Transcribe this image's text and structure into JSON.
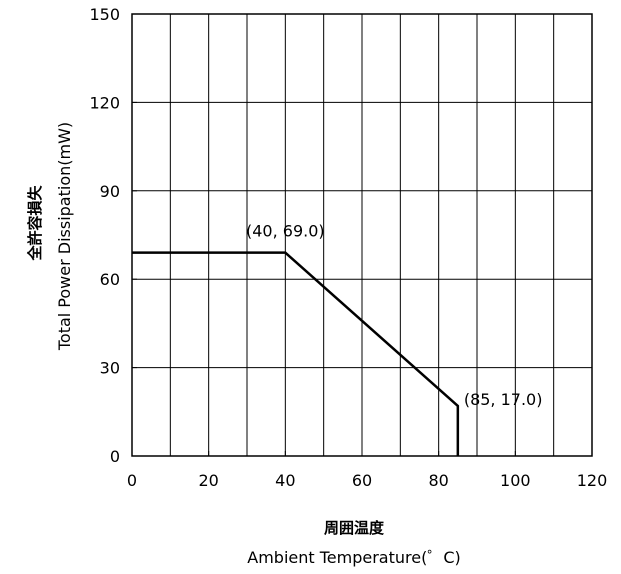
{
  "chart_data": {
    "type": "line",
    "title": "",
    "xlabel_ja": "周囲温度",
    "xlabel": "Ambient Temperature(゜C)",
    "ylabel_ja": "全許容損失",
    "ylabel": "Total Power Dissipation(mW)",
    "xlim": [
      0,
      120
    ],
    "ylim": [
      0,
      150
    ],
    "xticks": [
      0,
      20,
      40,
      60,
      80,
      100,
      120
    ],
    "yticks": [
      0,
      30,
      60,
      90,
      120,
      150
    ],
    "x_minor_step": 10,
    "grid": true,
    "series": [
      {
        "x": [
          0,
          40,
          85,
          85
        ],
        "y": [
          69.0,
          69.0,
          17.0,
          0
        ],
        "color": "#000000"
      }
    ],
    "annotations": [
      {
        "text": "(40, 69.0)",
        "x": 40,
        "y": 69.0,
        "position": "above"
      },
      {
        "text": "(85, 17.0)",
        "x": 85,
        "y": 17.0,
        "position": "right"
      }
    ]
  }
}
